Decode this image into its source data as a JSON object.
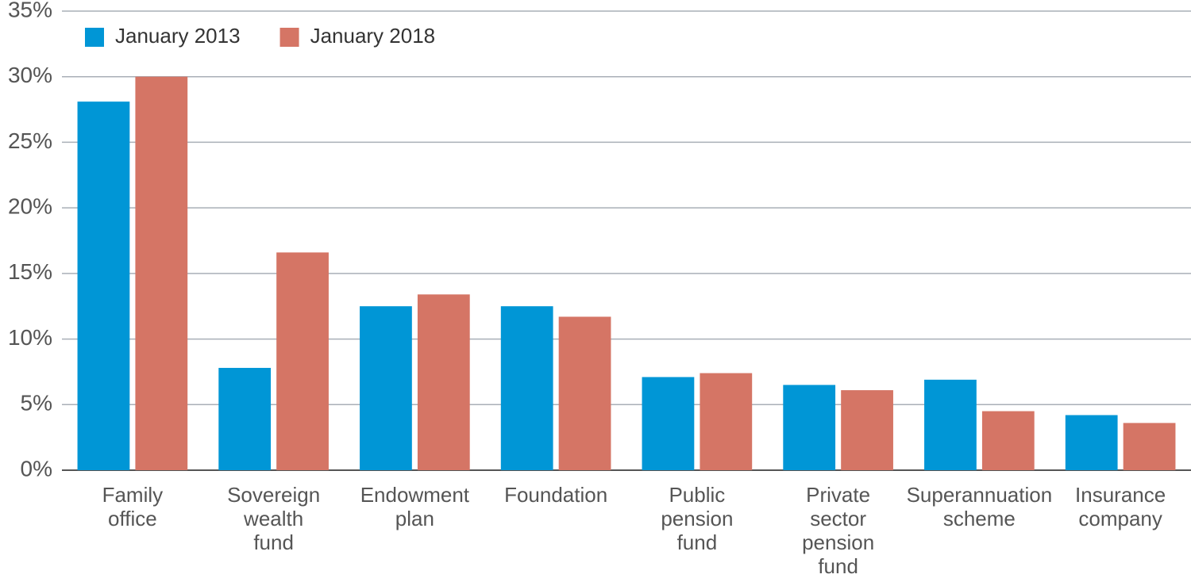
{
  "chart_data": {
    "type": "bar",
    "categories": [
      "Family\noffice",
      "Sovereign\nwealth\nfund",
      "Endowment\nplan",
      "Foundation",
      "Public\npension\nfund",
      "Private\nsector\npension\nfund",
      "Superannuation\nscheme",
      "Insurance\ncompany"
    ],
    "series": [
      {
        "name": "January 2013",
        "color": "#0096d6",
        "values": [
          28.1,
          7.8,
          12.5,
          12.5,
          7.1,
          6.5,
          6.9,
          4.2
        ]
      },
      {
        "name": "January 2018",
        "color": "#d57565",
        "values": [
          30.0,
          16.6,
          13.4,
          11.7,
          7.4,
          6.1,
          4.5,
          3.6
        ]
      }
    ],
    "ylim": [
      0,
      35
    ],
    "yticks": [
      {
        "value": 0,
        "label": "0%"
      },
      {
        "value": 5,
        "label": "5%"
      },
      {
        "value": 10,
        "label": "10%"
      },
      {
        "value": 15,
        "label": "15%"
      },
      {
        "value": 20,
        "label": "20%"
      },
      {
        "value": 25,
        "label": "25%"
      },
      {
        "value": 30,
        "label": "30%"
      },
      {
        "value": 35,
        "label": "35%"
      }
    ],
    "grid": true,
    "legend": "top-left"
  }
}
